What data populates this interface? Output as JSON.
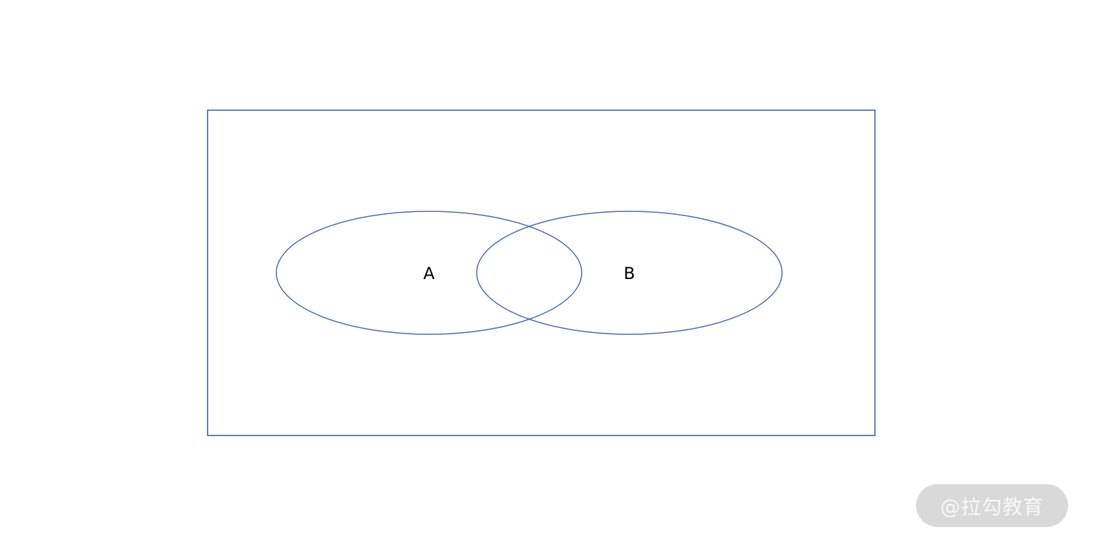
{
  "diagram": {
    "sets": [
      {
        "label": "A"
      },
      {
        "label": "B"
      }
    ],
    "line_color": "#4a69a3",
    "text_color": "#000000"
  },
  "watermark": {
    "text": "@拉勾教育",
    "background": "#d9d9d9",
    "text_color": "#f7f7f7"
  }
}
